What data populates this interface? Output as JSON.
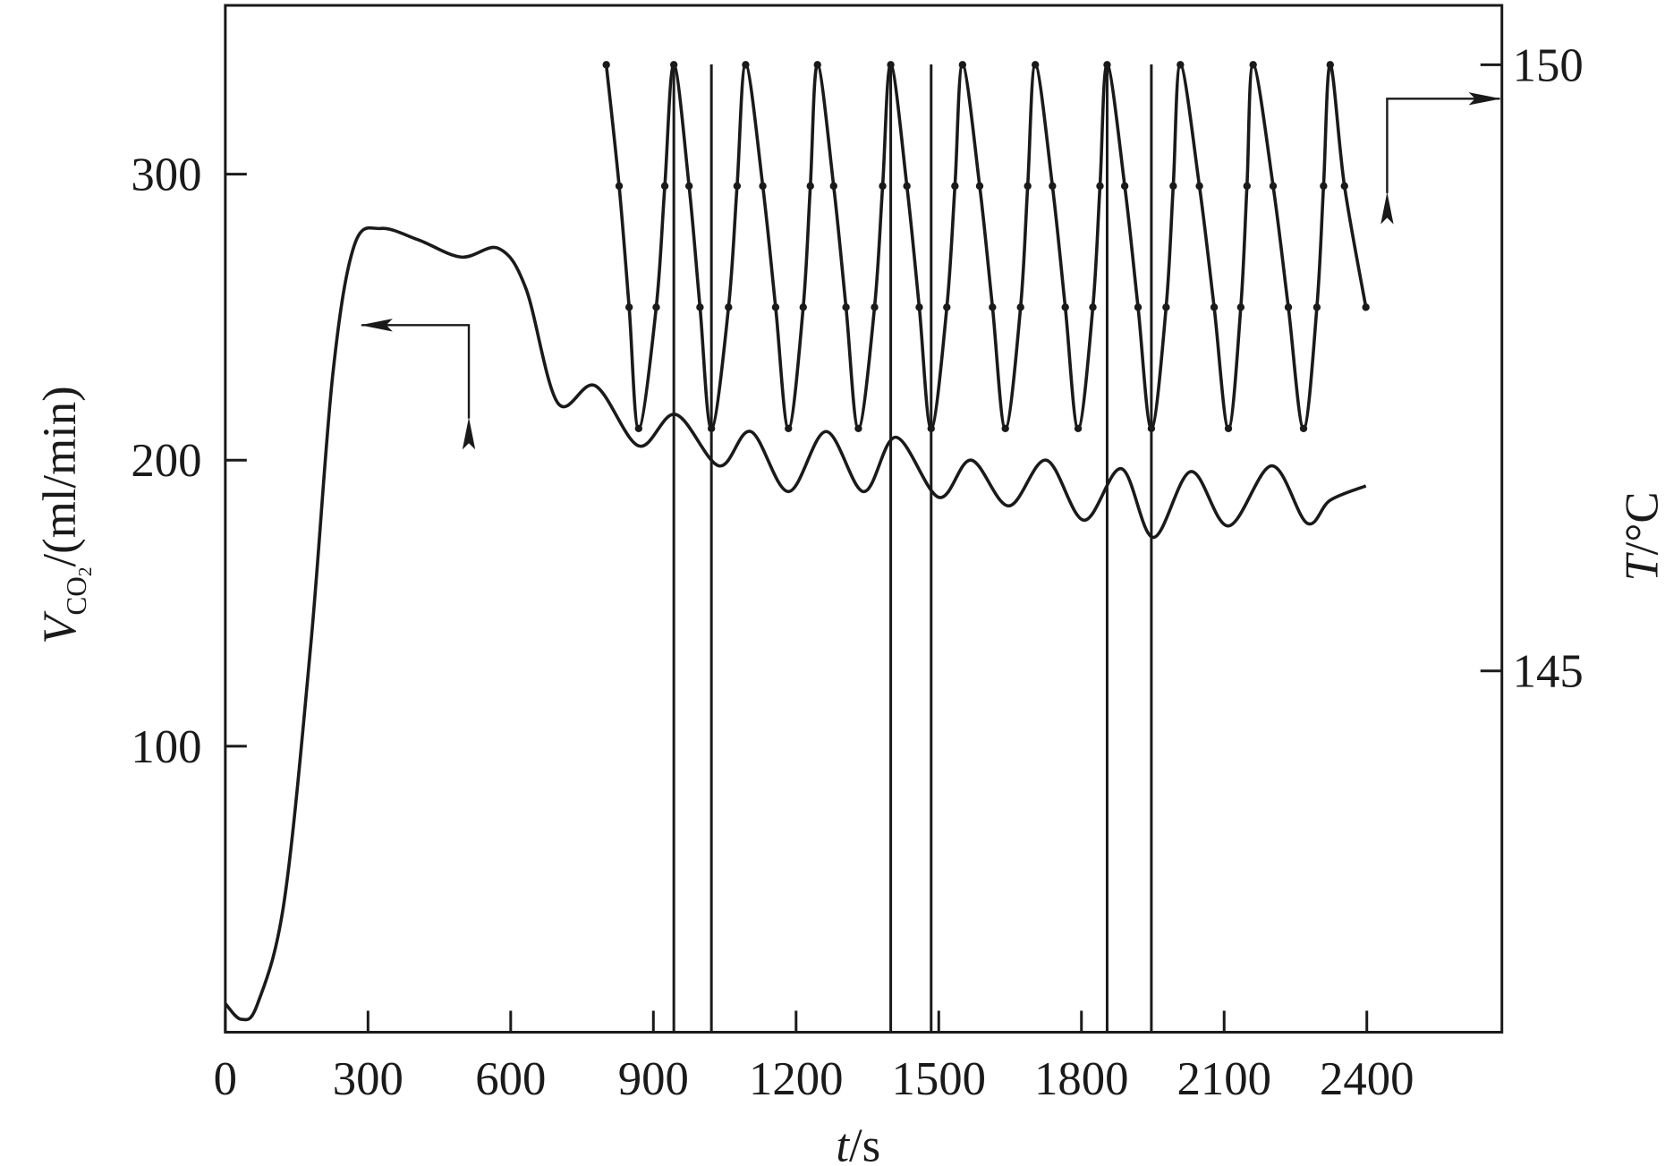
{
  "chart_data": {
    "type": "line",
    "xlabel_parts": [
      "t",
      "/s"
    ],
    "ylabel_parts": [
      "V",
      "CO",
      "2",
      "/(ml/min)"
    ],
    "y2label_parts": [
      "T",
      "/°C"
    ],
    "xlim": [
      0,
      2684
    ],
    "xticks": [
      0,
      300,
      600,
      900,
      1200,
      1500,
      1800,
      2100,
      2400
    ],
    "ylim": [
      0,
      359
    ],
    "yticks": [
      100,
      200,
      300
    ],
    "y2lim": [
      142.02,
      150.49
    ],
    "y2ticks": [
      145,
      150
    ],
    "series": [
      {
        "color": "#1a1a1a",
        "x": [
          0,
          34,
          68,
          124,
          180,
          226,
          271,
          327,
          406,
          496,
          575,
          632,
          699,
          778,
          869,
          947,
          1038,
          1105,
          1184,
          1263,
          1342,
          1410,
          1500,
          1568,
          1647,
          1726,
          1805,
          1884,
          1951,
          2030,
          2109,
          2200,
          2274,
          2323,
          2398
        ],
        "values": [
          10,
          4.5,
          10,
          46,
          136,
          230,
          275,
          281,
          277,
          271,
          274,
          260,
          220,
          226,
          205,
          216,
          198,
          210,
          189,
          210,
          189,
          208,
          187,
          200,
          184,
          200,
          179,
          197,
          173,
          196,
          177,
          198,
          178,
          186,
          191
        ]
      },
      {
        "color": "#1a1a1a",
        "axis": "y2",
        "x": [
          801,
          828,
          849,
          869,
          906,
          924,
          943,
          975,
          998,
          1022,
          1058,
          1076,
          1094,
          1130,
          1157,
          1184,
          1215,
          1230,
          1245,
          1279,
          1305,
          1331,
          1365,
          1382,
          1399,
          1433,
          1459,
          1484,
          1517,
          1534,
          1550,
          1586,
          1613,
          1640,
          1672,
          1687,
          1703,
          1739,
          1766,
          1793,
          1824,
          1839,
          1854,
          1891,
          1919,
          1947,
          1978,
          1993,
          2008,
          2048,
          2079,
          2109,
          2135,
          2148,
          2161,
          2203,
          2235,
          2267,
          2295,
          2309,
          2323,
          2353,
          2398
        ],
        "values": [
          150,
          149,
          148,
          147,
          148,
          149,
          150,
          149,
          148,
          147,
          148,
          149,
          150,
          149,
          148,
          147,
          148,
          149,
          150,
          149,
          148,
          147,
          148,
          149,
          150,
          149,
          148,
          147,
          148,
          149,
          150,
          149,
          148,
          147,
          148,
          149,
          150,
          149,
          148,
          147,
          148,
          149,
          150,
          149,
          148,
          147,
          148,
          149,
          150,
          149,
          148,
          147,
          148,
          149,
          150,
          149,
          148,
          147,
          148,
          149,
          150,
          149,
          148
        ]
      }
    ],
    "vlines": [
      943,
      1022,
      1399,
      1484,
      1854,
      1947
    ]
  }
}
